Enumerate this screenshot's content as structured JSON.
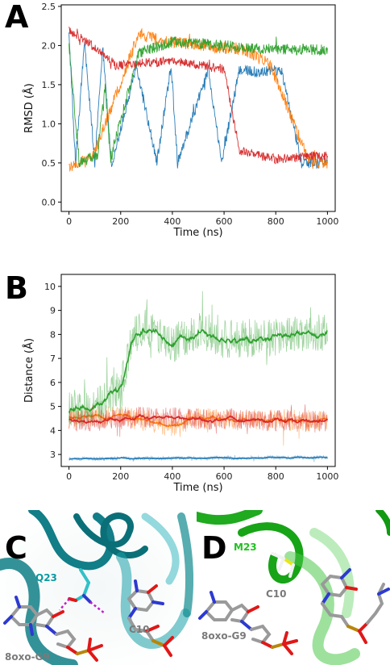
{
  "panels": {
    "a": {
      "letter": "A"
    },
    "b": {
      "letter": "B"
    },
    "c": {
      "letter": "C",
      "labels": {
        "q23": "Q23",
        "c10": "C10",
        "g9": "8oxo-G9"
      }
    },
    "d": {
      "letter": "D",
      "labels": {
        "m23": "M23",
        "c10": "C10",
        "g9": "8oxo-G9"
      }
    }
  },
  "colors": {
    "blue": "#1f77b4",
    "orange": "#ff7f0e",
    "green": "#2ca02c",
    "red": "#d62728",
    "teal": "#008b8b",
    "bright_green": "#22c022"
  },
  "chart_data": [
    {
      "type": "line",
      "panel": "A",
      "xlabel": "Time (ns)",
      "ylabel": "RMSD (Å)",
      "xlim": [
        -30,
        1030
      ],
      "ylim": [
        -0.12,
        2.52
      ],
      "xticks": [
        0,
        200,
        400,
        600,
        800,
        1000
      ],
      "yticks": [
        0.0,
        0.5,
        1.0,
        1.5,
        2.0,
        2.5
      ],
      "series": [
        {
          "color": "#1f77b4",
          "noise": 0.07,
          "segments": [
            [
              0,
              2.15
            ],
            [
              25,
              0.5
            ],
            [
              60,
              2.05
            ],
            [
              100,
              0.5
            ],
            [
              130,
              2.0
            ],
            [
              165,
              0.45
            ],
            [
              260,
              1.75
            ],
            [
              340,
              0.5
            ],
            [
              395,
              1.75
            ],
            [
              420,
              0.5
            ],
            [
              540,
              1.7
            ],
            [
              590,
              0.5
            ],
            [
              660,
              1.7
            ],
            [
              740,
              1.65
            ],
            [
              820,
              1.7
            ],
            [
              900,
              0.5
            ],
            [
              1000,
              0.5
            ]
          ]
        },
        {
          "color": "#ff7f0e",
          "noise": 0.08,
          "segments": [
            [
              0,
              0.45
            ],
            [
              90,
              0.55
            ],
            [
              270,
              2.15
            ],
            [
              370,
              2.05
            ],
            [
              520,
              2.0
            ],
            [
              680,
              1.95
            ],
            [
              780,
              1.75
            ],
            [
              930,
              0.5
            ],
            [
              1000,
              0.5
            ]
          ]
        },
        {
          "color": "#2ca02c",
          "noise": 0.07,
          "segments": [
            [
              0,
              2.0
            ],
            [
              40,
              0.5
            ],
            [
              110,
              0.6
            ],
            [
              140,
              1.5
            ],
            [
              160,
              0.55
            ],
            [
              270,
              1.9
            ],
            [
              400,
              2.05
            ],
            [
              600,
              2.0
            ],
            [
              800,
              1.95
            ],
            [
              1000,
              1.95
            ]
          ]
        },
        {
          "color": "#d62728",
          "noise": 0.06,
          "segments": [
            [
              0,
              2.2
            ],
            [
              130,
              1.9
            ],
            [
              180,
              1.75
            ],
            [
              400,
              1.8
            ],
            [
              600,
              1.7
            ],
            [
              660,
              0.65
            ],
            [
              800,
              0.55
            ],
            [
              1000,
              0.6
            ]
          ]
        }
      ]
    },
    {
      "type": "line",
      "panel": "B",
      "xlabel": "Time (ns)",
      "ylabel": "Distance (Å)",
      "xlim": [
        -30,
        1030
      ],
      "ylim": [
        2.5,
        10.5
      ],
      "xticks": [
        0,
        200,
        400,
        600,
        800,
        1000
      ],
      "yticks": [
        3,
        4,
        5,
        6,
        7,
        8,
        9,
        10
      ],
      "series": [
        {
          "color": "#1f77b4",
          "raw_noise": 0.08,
          "segments": [
            [
              0,
              2.82
            ],
            [
              1000,
              2.88
            ]
          ]
        },
        {
          "color": "#ff7f0e",
          "raw_noise": 0.45,
          "segments": [
            [
              0,
              4.5
            ],
            [
              200,
              4.6
            ],
            [
              400,
              4.2
            ],
            [
              500,
              4.5
            ],
            [
              1000,
              4.4
            ]
          ]
        },
        {
          "color": "#2ca02c",
          "raw_noise": 0.8,
          "segments": [
            [
              0,
              5.0
            ],
            [
              100,
              4.9
            ],
            [
              200,
              5.8
            ],
            [
              250,
              8.0
            ],
            [
              300,
              8.3
            ],
            [
              400,
              7.6
            ],
            [
              500,
              8.2
            ],
            [
              600,
              7.8
            ],
            [
              800,
              7.9
            ],
            [
              1000,
              8.1
            ]
          ]
        },
        {
          "color": "#d62728",
          "raw_noise": 0.45,
          "segments": [
            [
              0,
              4.4
            ],
            [
              150,
              4.4
            ],
            [
              250,
              4.55
            ],
            [
              500,
              4.5
            ],
            [
              1000,
              4.35
            ]
          ]
        }
      ]
    }
  ]
}
